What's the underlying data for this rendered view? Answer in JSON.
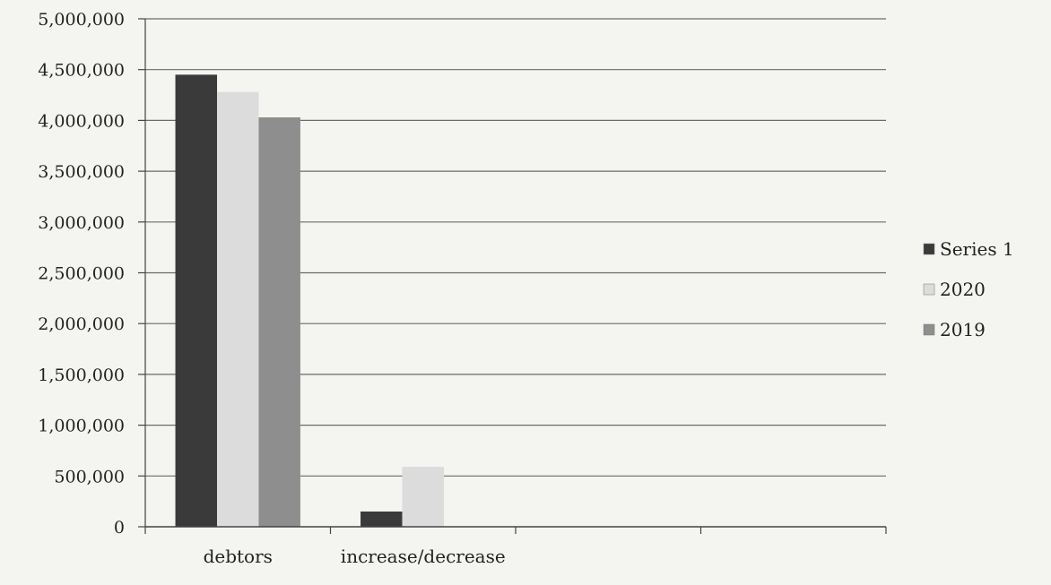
{
  "chart_data": {
    "type": "bar",
    "categories": [
      "debtors",
      "increase/decrease",
      "",
      ""
    ],
    "series": [
      {
        "name": "Series 1",
        "values": [
          4450000,
          150000,
          null,
          null
        ]
      },
      {
        "name": "2020",
        "values": [
          4280000,
          590000,
          null,
          null
        ]
      },
      {
        "name": "2019",
        "values": [
          4030000,
          null,
          null,
          null
        ]
      }
    ],
    "ylim": [
      0,
      5000000
    ],
    "yticks": [
      0,
      500000,
      1000000,
      1500000,
      2000000,
      2500000,
      3000000,
      3500000,
      4000000,
      4500000,
      5000000
    ],
    "ytick_labels": [
      "0",
      "500,000",
      "1,000,000",
      "1,500,000",
      "2,000,000",
      "2,500,000",
      "3,000,000",
      "3,500,000",
      "4,000,000",
      "4,500,000",
      "5,000,000"
    ],
    "grid": true,
    "legend_position": "right",
    "colors": [
      "#3a3a3a",
      "#dcdcdc",
      "#8e8e8e"
    ]
  }
}
